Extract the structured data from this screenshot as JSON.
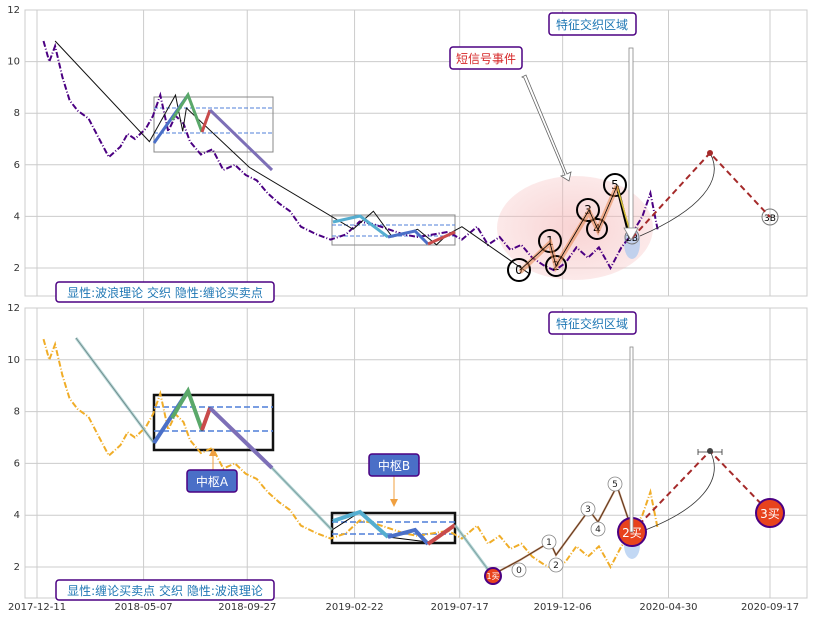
{
  "chart_data": [
    {
      "type": "line",
      "panel": "top",
      "ylim": [
        1,
        12
      ],
      "yticks": [
        2,
        4,
        6,
        8,
        10,
        12
      ],
      "grid": true,
      "price_color": "#4b0082",
      "series": [
        {
          "x": [
            "2017-12-20",
            "2017-12-28",
            "2018-01-05",
            "2018-01-15",
            "2018-01-25",
            "2018-02-05",
            "2018-02-20",
            "2018-03-05",
            "2018-03-20",
            "2018-04-05",
            "2018-04-15",
            "2018-04-25",
            "2018-05-10",
            "2018-05-20",
            "2018-05-30",
            "2018-06-10",
            "2018-06-20",
            "2018-07-01",
            "2018-07-10",
            "2018-07-25",
            "2018-08-10",
            "2018-08-25",
            "2018-09-10",
            "2018-09-25",
            "2018-10-10",
            "2018-10-25",
            "2018-11-10",
            "2018-11-25",
            "2018-12-10",
            "2019-01-01",
            "2019-01-20",
            "2019-02-10",
            "2019-03-01",
            "2019-03-20",
            "2019-04-10",
            "2019-05-01",
            "2019-05-20",
            "2019-06-10",
            "2019-07-01",
            "2019-07-20",
            "2019-08-10",
            "2019-08-25",
            "2019-09-10",
            "2019-09-25",
            "2019-10-10",
            "2019-10-25",
            "2019-11-10",
            "2019-11-25",
            "2019-12-10",
            "2019-12-25",
            "2020-01-10",
            "2020-01-25",
            "2020-02-10",
            "2020-02-25",
            "2020-03-10",
            "2020-03-25",
            "2020-04-05",
            "2020-04-15"
          ],
          "y": [
            10.8,
            10.0,
            10.6,
            9.4,
            8.5,
            8.1,
            7.8,
            7.1,
            6.3,
            6.7,
            7.2,
            7.0,
            7.4,
            7.9,
            8.7,
            7.3,
            7.9,
            7.6,
            6.9,
            6.4,
            6.6,
            5.8,
            6.0,
            5.6,
            5.4,
            4.9,
            4.5,
            4.2,
            3.6,
            3.3,
            3.1,
            3.3,
            3.8,
            3.7,
            3.5,
            3.3,
            3.2,
            3.3,
            3.4,
            3.1,
            3.6,
            2.9,
            3.2,
            2.7,
            2.9,
            2.4,
            2.1,
            1.9,
            2.2,
            2.8,
            2.4,
            2.8,
            2.0,
            2.8,
            3.3,
            4.0,
            4.9,
            3.5
          ]
        }
      ],
      "wave": {
        "x": [
          "2018-01-05",
          "2018-05-15",
          "2018-06-20",
          "2018-06-30",
          "2018-07-05",
          "2018-09-30",
          "2019-02-20",
          "2019-03-20",
          "2019-04-15",
          "2019-05-20",
          "2019-06-15",
          "2019-06-30",
          "2019-07-20",
          "2019-10-20"
        ],
        "y": [
          10.8,
          6.9,
          8.7,
          7.3,
          8.2,
          5.9,
          3.5,
          4.2,
          3.2,
          3.5,
          2.9,
          3.3,
          3.6,
          1.8
        ]
      },
      "wave_labels": [
        "0",
        "1",
        "2",
        "3",
        "4",
        "5",
        "3B"
      ],
      "wave_points": {
        "x": [
          "2019-11-10",
          "2019-11-28",
          "2019-12-10",
          "2020-02-05",
          "2020-02-15",
          "2020-03-05",
          "2020-04-05",
          "2020-07-01",
          "2020-09-20"
        ],
        "y": [
          1.9,
          3.0,
          2.0,
          4.3,
          3.5,
          5.2,
          3.2,
          6.5,
          4.0
        ]
      },
      "annotations": [
        {
          "text": "短信号事件",
          "color": "#d62728"
        },
        {
          "text": "特征交织区域",
          "color": "#1f77b4"
        }
      ],
      "caption": "显性:波浪理论 交织 隐性:缠论买卖点"
    },
    {
      "type": "line",
      "panel": "bottom",
      "ylim": [
        1,
        12
      ],
      "yticks": [
        2,
        4,
        6,
        8,
        10,
        12
      ],
      "grid": true,
      "price_color": "#f0ad28",
      "xticks": [
        "2017-12-11",
        "2018-05-07",
        "2018-09-27",
        "2019-02-22",
        "2019-07-17",
        "2019-12-06",
        "2020-04-30",
        "2020-09-17"
      ],
      "annotations": [
        {
          "text": "中枢A",
          "color": "#ffffff"
        },
        {
          "text": "中枢B",
          "color": "#ffffff"
        },
        {
          "text": "特征交织区域",
          "color": "#1f77b4"
        }
      ],
      "buy_points": [
        {
          "x": "2019-10-25",
          "y": 1.7,
          "text": "1买"
        },
        {
          "x": "2020-04-10",
          "y": 3.3,
          "text": "2买"
        },
        {
          "x": "2020-09-20",
          "y": 4.1,
          "text": "3买"
        }
      ],
      "caption": "显性:缠论买卖点 交织 隐性:波浪理论"
    }
  ]
}
